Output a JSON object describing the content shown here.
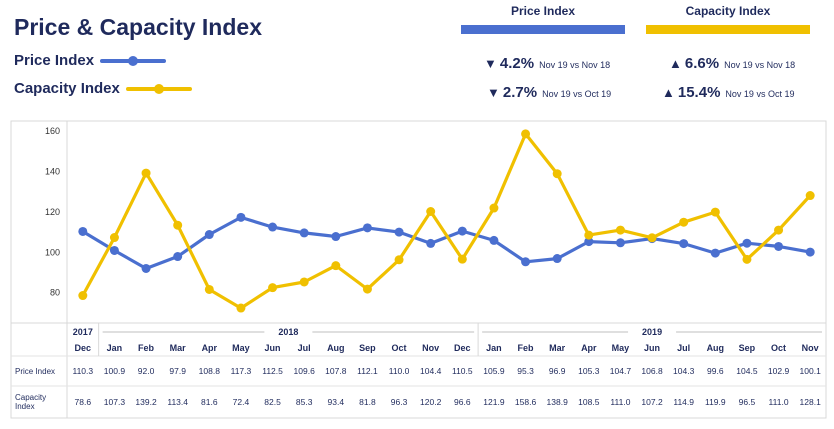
{
  "title": "Price & Capacity Index",
  "legend": {
    "price_label": "Price Index",
    "capacity_label": "Capacity Index"
  },
  "colors": {
    "price": "#4a6fcf",
    "capacity": "#f0c000",
    "text": "#1f2a5c"
  },
  "stats": {
    "price": {
      "header": "Price Index",
      "rows": [
        {
          "arrow": "▼",
          "pct": "4.2%",
          "cmp": "Nov 19 vs Nov 18"
        },
        {
          "arrow": "▼",
          "pct": "2.7%",
          "cmp": "Nov 19 vs Oct 19"
        }
      ]
    },
    "capacity": {
      "header": "Capacity Index",
      "rows": [
        {
          "arrow": "▲",
          "pct": "6.6%",
          "cmp": "Nov 19 vs Nov 18"
        },
        {
          "arrow": "▲",
          "pct": "15.4%",
          "cmp": "Nov 19 vs Oct 19"
        }
      ]
    }
  },
  "chart_data": {
    "type": "line",
    "ylim": [
      65,
      165
    ],
    "yticks": [
      80,
      100,
      120,
      140,
      160
    ],
    "grid": false,
    "categories": [
      "Dec",
      "Jan",
      "Feb",
      "Mar",
      "Apr",
      "May",
      "Jun",
      "Jul",
      "Aug",
      "Sep",
      "Oct",
      "Nov",
      "Dec",
      "Jan",
      "Feb",
      "Mar",
      "Apr",
      "May",
      "Jun",
      "Jul",
      "Aug",
      "Sep",
      "Oct",
      "Nov"
    ],
    "year_groups": [
      {
        "label": "2017",
        "start": 0,
        "end": 0
      },
      {
        "label": "2018",
        "start": 1,
        "end": 12
      },
      {
        "label": "2019",
        "start": 13,
        "end": 23
      }
    ],
    "series": [
      {
        "name": "Price Index",
        "row_label": "Price Index",
        "color": "#4a6fcf",
        "values": [
          110.3,
          100.9,
          92.0,
          97.9,
          108.8,
          117.3,
          112.5,
          109.6,
          107.8,
          112.1,
          110.0,
          104.4,
          110.5,
          105.9,
          95.3,
          96.9,
          105.3,
          104.7,
          106.8,
          104.3,
          99.6,
          104.5,
          102.9,
          100.1
        ]
      },
      {
        "name": "Capacity Index",
        "row_label": [
          "Capacity",
          "Index"
        ],
        "color": "#f0c000",
        "values": [
          78.6,
          107.3,
          139.2,
          113.4,
          81.6,
          72.4,
          82.5,
          85.3,
          93.4,
          81.8,
          96.3,
          120.2,
          96.6,
          121.9,
          158.6,
          138.9,
          108.5,
          111.0,
          107.2,
          114.9,
          119.9,
          96.5,
          111.0,
          128.1
        ]
      }
    ]
  }
}
